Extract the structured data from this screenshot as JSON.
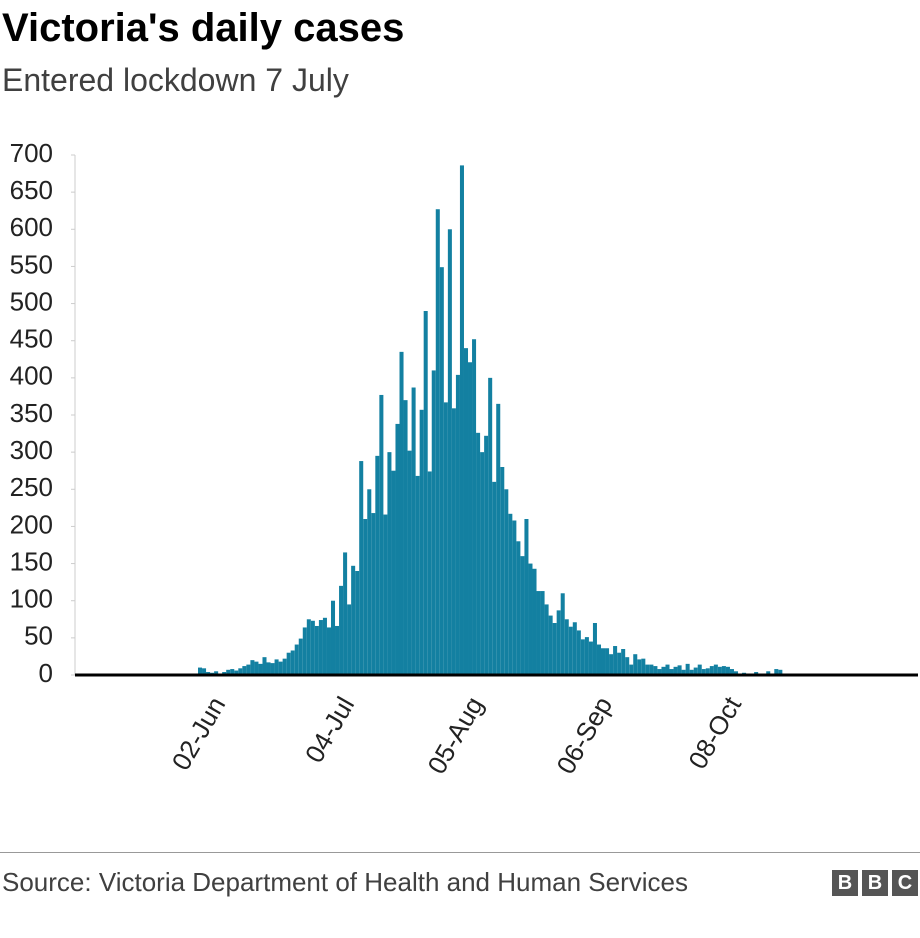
{
  "chart_data": {
    "type": "bar",
    "title": "Victoria's daily cases",
    "subtitle": "Entered lockdown 7 July",
    "source": "Source: Victoria Department of Health and Human Services",
    "color": "#1380a1",
    "categories": [
      null,
      null,
      null,
      null,
      null,
      "02-Jun",
      null,
      null,
      null,
      null,
      null,
      null,
      null,
      null,
      null,
      null,
      null,
      null,
      null,
      null,
      null,
      null,
      null,
      null,
      null,
      null,
      null,
      null,
      null,
      null,
      null,
      null,
      null,
      null,
      null,
      null,
      null,
      "04-Jul",
      null,
      null,
      null,
      null,
      null,
      null,
      null,
      null,
      null,
      null,
      null,
      null,
      null,
      null,
      null,
      null,
      null,
      null,
      null,
      null,
      null,
      null,
      null,
      null,
      null,
      null,
      null,
      null,
      null,
      null,
      null,
      "05-Aug",
      null,
      null,
      null,
      null,
      null,
      null,
      null,
      null,
      null,
      null,
      null,
      null,
      null,
      null,
      null,
      null,
      null,
      null,
      null,
      null,
      null,
      null,
      null,
      null,
      null,
      null,
      null,
      null,
      null,
      null,
      null,
      "06-Sep",
      null,
      null,
      null,
      null,
      null,
      null,
      null,
      null,
      null,
      null,
      null,
      null,
      null,
      null,
      null,
      null,
      null,
      null,
      null,
      null,
      null,
      null,
      null,
      null,
      null,
      null,
      null,
      null,
      null,
      null,
      null,
      "08-Oct",
      null,
      null,
      null,
      null,
      null,
      null,
      null,
      null,
      null,
      null,
      null
    ],
    "values": [
      10,
      9,
      4,
      3,
      5,
      2,
      4,
      7,
      8,
      6,
      9,
      12,
      14,
      20,
      18,
      15,
      24,
      17,
      16,
      21,
      18,
      22,
      30,
      33,
      41,
      49,
      64,
      75,
      73,
      66,
      74,
      77,
      64,
      100,
      66,
      120,
      165,
      95,
      147,
      140,
      288,
      210,
      250,
      218,
      295,
      377,
      216,
      300,
      275,
      338,
      435,
      370,
      302,
      387,
      268,
      357,
      490,
      274,
      410,
      627,
      549,
      367,
      600,
      359,
      404,
      686,
      440,
      421,
      452,
      326,
      300,
      322,
      400,
      260,
      365,
      280,
      250,
      217,
      208,
      180,
      160,
      210,
      150,
      143,
      113,
      113,
      95,
      80,
      70,
      87,
      110,
      75,
      65,
      71,
      60,
      48,
      51,
      45,
      70,
      41,
      36,
      36,
      28,
      39,
      30,
      35,
      24,
      14,
      28,
      21,
      22,
      14,
      14,
      12,
      8,
      11,
      14,
      8,
      11,
      13,
      7,
      15,
      7,
      10,
      14,
      8,
      9,
      12,
      14,
      11,
      12,
      11,
      8,
      5,
      2,
      3,
      1,
      1,
      4,
      2,
      2,
      5,
      1,
      8,
      7
    ],
    "ylim": [
      0,
      700
    ],
    "yticks": [
      0,
      50,
      100,
      150,
      200,
      250,
      300,
      350,
      400,
      450,
      500,
      550,
      600,
      650,
      700
    ]
  }
}
